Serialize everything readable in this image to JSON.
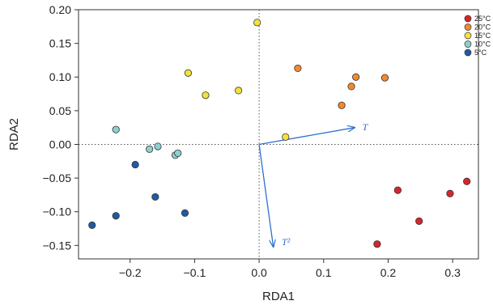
{
  "chart_data": {
    "type": "scatter",
    "xlabel": "RDA1",
    "ylabel": "RDA2",
    "xlim": [
      -0.28,
      0.34
    ],
    "ylim": [
      -0.17,
      0.2
    ],
    "x_ticks": [
      {
        "value": -0.2,
        "label": "−0.2"
      },
      {
        "value": -0.1,
        "label": "−0.1"
      },
      {
        "value": 0.0,
        "label": "0.0"
      },
      {
        "value": 0.1,
        "label": "0.1"
      },
      {
        "value": 0.2,
        "label": "0.2"
      },
      {
        "value": 0.3,
        "label": "0.3"
      }
    ],
    "y_ticks": [
      {
        "value": 0.2,
        "label": "0.20"
      },
      {
        "value": 0.15,
        "label": "0.15"
      },
      {
        "value": 0.1,
        "label": "0.10"
      },
      {
        "value": 0.05,
        "label": "0.05"
      },
      {
        "value": 0.0,
        "label": "0.00"
      },
      {
        "value": -0.05,
        "label": "−0.05"
      },
      {
        "value": -0.1,
        "label": "−0.10"
      },
      {
        "value": -0.15,
        "label": "−0.15"
      }
    ],
    "grid": false,
    "reference_lines": {
      "x": 0,
      "y": 0,
      "style": "dotted"
    },
    "legend_position": "top-right",
    "series": [
      {
        "name": "25°C",
        "color": "#d7262b",
        "points": [
          [
            0.183,
            -0.148
          ],
          [
            0.215,
            -0.068
          ],
          [
            0.248,
            -0.114
          ],
          [
            0.296,
            -0.073
          ],
          [
            0.322,
            -0.055
          ]
        ]
      },
      {
        "name": "20°C",
        "color": "#f08a30",
        "points": [
          [
            0.06,
            0.113
          ],
          [
            0.128,
            0.058
          ],
          [
            0.143,
            0.086
          ],
          [
            0.15,
            0.1
          ],
          [
            0.195,
            0.099
          ]
        ]
      },
      {
        "name": "15°C",
        "color": "#f2e23c",
        "points": [
          [
            -0.11,
            0.106
          ],
          [
            -0.083,
            0.073
          ],
          [
            -0.032,
            0.08
          ],
          [
            -0.003,
            0.181
          ],
          [
            0.041,
            0.011
          ]
        ]
      },
      {
        "name": "10°C",
        "color": "#8ecfcf",
        "points": [
          [
            -0.222,
            0.022
          ],
          [
            -0.17,
            -0.007
          ],
          [
            -0.157,
            -0.003
          ],
          [
            -0.13,
            -0.016
          ],
          [
            -0.126,
            -0.013
          ]
        ]
      },
      {
        "name": "5°C",
        "color": "#1f5aa6",
        "points": [
          [
            -0.259,
            -0.12
          ],
          [
            -0.222,
            -0.106
          ],
          [
            -0.192,
            -0.03
          ],
          [
            -0.161,
            -0.078
          ],
          [
            -0.115,
            -0.102
          ]
        ]
      }
    ],
    "vectors": [
      {
        "label": "T",
        "x": 0.148,
        "y": 0.025,
        "label_x": 0.16,
        "label_y": 0.026
      },
      {
        "label": "T²",
        "x": 0.022,
        "y": -0.152,
        "label_x": 0.035,
        "label_y": -0.145
      }
    ],
    "arrow_color": "#2f6fd0"
  }
}
